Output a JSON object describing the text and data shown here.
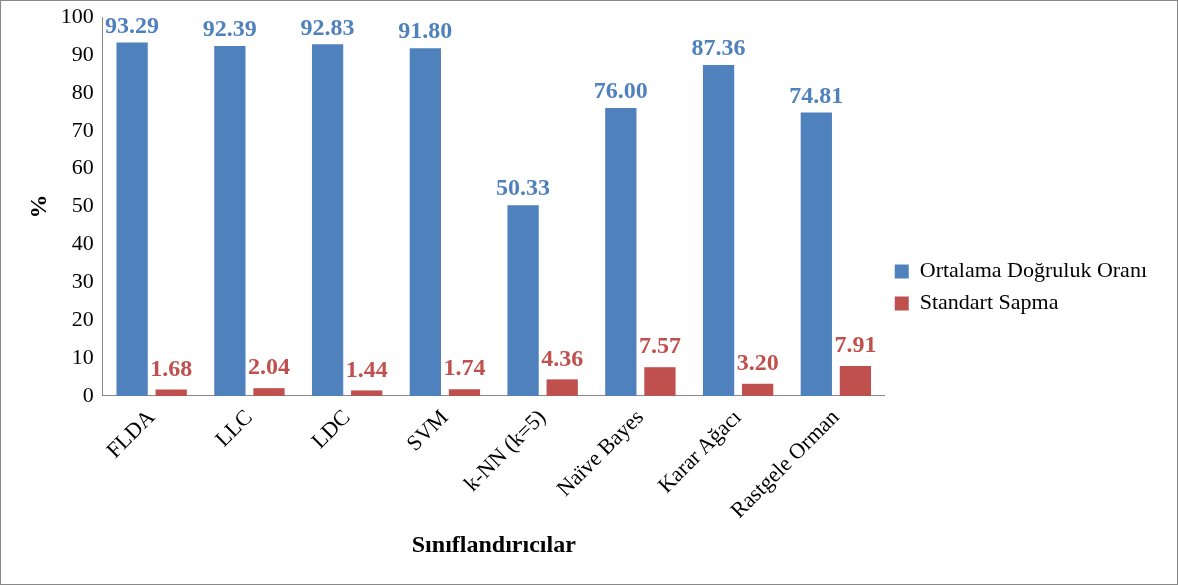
{
  "chart_data": {
    "type": "bar",
    "xlabel": "Sınıflandırıcılar",
    "ylabel": "%",
    "categories": [
      "FLDA",
      "LLC",
      "LDC",
      "SVM",
      "k-NN (k=5)",
      "Naïve Bayes",
      "Karar Ağacı",
      "Rastgele Orman"
    ],
    "series": [
      {
        "name": "Ortalama Doğruluk Oranı",
        "color": "#4f81bd",
        "values": [
          93.29,
          92.39,
          92.83,
          91.8,
          50.33,
          76.0,
          87.36,
          74.81
        ],
        "value_labels": [
          "93.29",
          "92.39",
          "92.83",
          "91.80",
          "50.33",
          "76.00",
          "87.36",
          "74.81"
        ]
      },
      {
        "name": "Standart Sapma",
        "color": "#c0504d",
        "values": [
          1.68,
          2.04,
          1.44,
          1.74,
          4.36,
          7.57,
          3.2,
          7.91
        ],
        "value_labels": [
          "1.68",
          "2.04",
          "1.44",
          "1.74",
          "4.36",
          "7.57",
          "3.20",
          "7.91"
        ]
      }
    ],
    "ylim": [
      0,
      100
    ],
    "yticks": [
      0,
      10,
      20,
      30,
      40,
      50,
      60,
      70,
      80,
      90,
      100
    ],
    "grid": false,
    "legend": "right"
  }
}
